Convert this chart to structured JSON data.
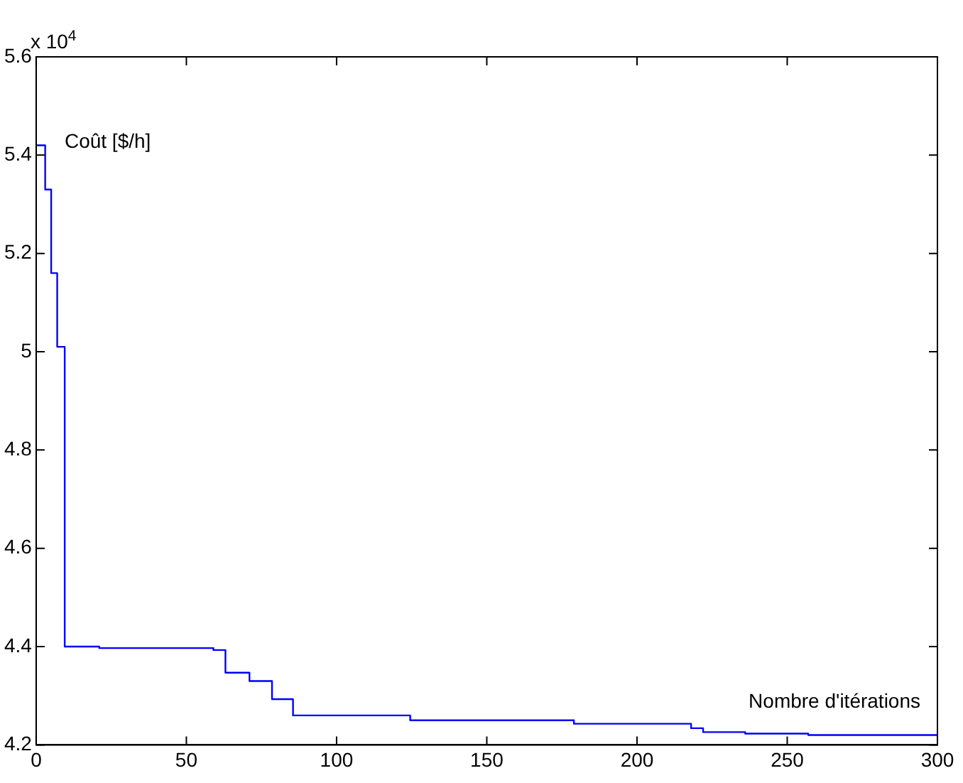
{
  "chart_data": {
    "type": "step",
    "xlabel": "Nombre d'itérations",
    "ylabel": "Coût [$/h]",
    "annotations": [
      "x 10$^{4}$"
    ],
    "x": [
      0,
      3,
      5,
      7,
      9.5,
      21,
      59,
      63,
      71,
      78.5,
      85.5,
      124.5,
      179,
      218,
      222,
      236,
      257,
      300
    ],
    "values": [
      5.42,
      5.33,
      5.16,
      5.01,
      4.4,
      4.397,
      4.393,
      4.347,
      4.33,
      4.293,
      4.26,
      4.25,
      4.243,
      4.234,
      4.226,
      4.223,
      4.22,
      4.22
    ],
    "color": "#0000ff",
    "xlim": [
      0,
      300
    ],
    "xticks": [
      0,
      50,
      100,
      150,
      200,
      250,
      300
    ],
    "ylim": [
      4.2,
      5.6
    ],
    "yticks": [
      4.2,
      4.4,
      4.6,
      4.8,
      5,
      5.2,
      5.4,
      5.6
    ],
    "grid": false,
    "legend": false
  }
}
